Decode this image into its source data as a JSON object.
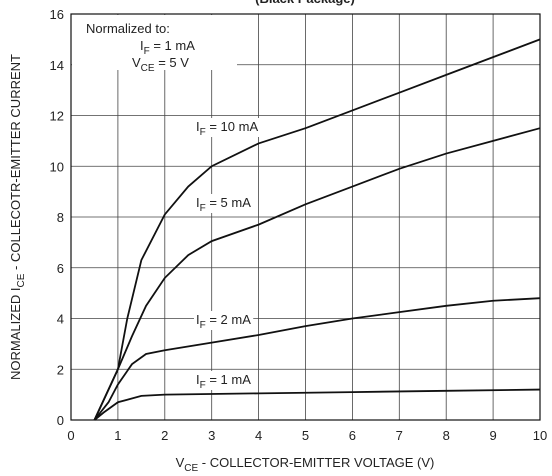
{
  "chart_data": {
    "type": "line",
    "title": "(Black Package)",
    "x_label": [
      "V",
      "CE",
      " - COLLECTOR-EMITTER VOLTAGE (V)"
    ],
    "y_label": [
      "NORMALIZED I",
      "CE",
      " - COLLECOTR-EMITTER CURRENT"
    ],
    "annotation": {
      "heading": "Normalized to:",
      "line1": [
        "I",
        "F",
        " = 1 mA"
      ],
      "line2": [
        "V",
        "CE",
        " = 5 V"
      ]
    },
    "xlim": [
      0,
      10
    ],
    "xticks": [
      0,
      1,
      2,
      3,
      4,
      5,
      6,
      7,
      8,
      9,
      10
    ],
    "ylim": [
      0,
      16
    ],
    "yticks": [
      0,
      2,
      4,
      6,
      8,
      10,
      12,
      14,
      16
    ],
    "grid": true,
    "series": [
      {
        "name": [
          "I",
          "F",
          " = 10 mA"
        ],
        "color": "#111111",
        "x": [
          0.5,
          1,
          1.2,
          1.5,
          2,
          2.5,
          3,
          4,
          5,
          6,
          7,
          8,
          9,
          10
        ],
        "values": [
          0,
          2.0,
          4.0,
          6.3,
          8.1,
          9.2,
          10.0,
          10.9,
          11.5,
          12.2,
          12.9,
          13.6,
          14.3,
          15.0
        ]
      },
      {
        "name": [
          "I",
          "F",
          " = 5 mA"
        ],
        "color": "#111111",
        "x": [
          0.5,
          1,
          1.3,
          1.6,
          2,
          2.5,
          3,
          4,
          5,
          6,
          7,
          8,
          9,
          10
        ],
        "values": [
          0,
          2.0,
          3.3,
          4.5,
          5.6,
          6.5,
          7.05,
          7.7,
          8.5,
          9.2,
          9.9,
          10.5,
          11.0,
          11.5
        ]
      },
      {
        "name": [
          "I",
          "F",
          " = 2 mA"
        ],
        "color": "#111111",
        "x": [
          0.5,
          0.8,
          1,
          1.3,
          1.6,
          2,
          3,
          4,
          5,
          6,
          7,
          8,
          9,
          10
        ],
        "values": [
          0,
          0.7,
          1.4,
          2.2,
          2.6,
          2.75,
          3.05,
          3.35,
          3.7,
          4.0,
          4.25,
          4.5,
          4.7,
          4.8
        ]
      },
      {
        "name": [
          "I",
          "F",
          " = 1 mA"
        ],
        "color": "#111111",
        "x": [
          0.5,
          0.7,
          1,
          1.5,
          2,
          4,
          6,
          8,
          10
        ],
        "values": [
          0,
          0.3,
          0.7,
          0.95,
          1.0,
          1.05,
          1.1,
          1.15,
          1.2
        ]
      }
    ]
  }
}
